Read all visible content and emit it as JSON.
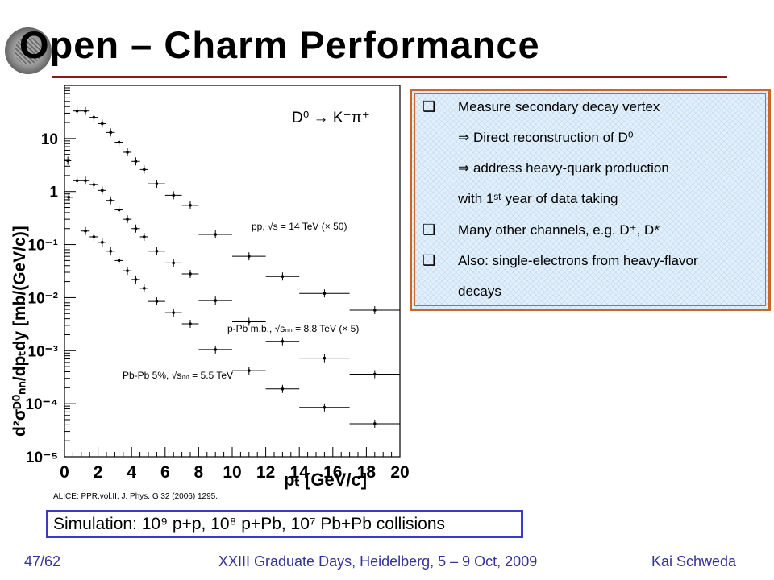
{
  "slide": {
    "title": "Open – Charm Performance",
    "reference": "ALICE:  PPR.vol.II, J. Phys. G 32 (2006)  1295.",
    "simulation": "Simulation:  10⁹ p+p, 10⁸ p+Pb, 10⁷ Pb+Pb collisions",
    "footer_left": "47/62",
    "footer_center": "XXIII Graduate Days, Heidelberg, 5 – 9 Oct, 2009",
    "footer_right": "Kai Schweda",
    "colors": {
      "rule": "#8b1a1a",
      "box_border": "#c9662a",
      "box_fill": "#e2f0fc",
      "sim_border": "#3a3ac8",
      "footer": "#333399"
    }
  },
  "bullets": [
    {
      "mark": "❑",
      "text": "Measure secondary decay vertex"
    },
    {
      "mark": "",
      "text": "⇒ Direct reconstruction of D⁰"
    },
    {
      "mark": "",
      "text": "⇒ address heavy-quark production"
    },
    {
      "mark": "",
      "text": "with 1ˢᵗ year of data taking"
    },
    {
      "mark": "❑",
      "text": "Many other channels, e.g. D⁺, D*"
    },
    {
      "mark": "❑",
      "text": "Also: single-electrons from heavy-flavor"
    },
    {
      "mark": "",
      "text": "decays"
    }
  ],
  "chart_data": {
    "type": "scatter",
    "decay_label": "D⁰ → K⁻π⁺",
    "xlabel": "pₜ [GeV/c]",
    "ylabel": "d²σᴰ⁰ₙₙ/dpₜdy [mb/(GeV/c)]",
    "xlim": [
      0,
      20
    ],
    "ylim_log10": [
      -5,
      2
    ],
    "y_scale": "log",
    "x_ticks": [
      "0",
      "2",
      "4",
      "6",
      "8",
      "10",
      "12",
      "14",
      "16",
      "18",
      "20"
    ],
    "y_ticks": [
      {
        "exp": 1,
        "label": "10"
      },
      {
        "exp": 0,
        "label": "1"
      },
      {
        "exp": -1,
        "label": "10⁻¹"
      },
      {
        "exp": -2,
        "label": "10⁻²"
      },
      {
        "exp": -3,
        "label": "10⁻³"
      },
      {
        "exp": -4,
        "label": "10⁻⁴"
      },
      {
        "exp": -5,
        "label": "10⁻⁵"
      }
    ],
    "series": [
      {
        "name": "pp, √s = 14 TeV (× 50)",
        "points": [
          [
            0.2,
            0.2,
            3.8
          ],
          [
            0.75,
            0.25,
            33
          ],
          [
            1.25,
            0.25,
            33
          ],
          [
            1.75,
            0.25,
            25
          ],
          [
            2.25,
            0.25,
            19
          ],
          [
            2.75,
            0.25,
            13
          ],
          [
            3.25,
            0.25,
            8.5
          ],
          [
            3.75,
            0.25,
            5.5
          ],
          [
            4.25,
            0.25,
            3.7
          ],
          [
            4.75,
            0.25,
            2.6
          ],
          [
            5.5,
            0.5,
            1.4
          ],
          [
            6.5,
            0.5,
            0.85
          ],
          [
            7.5,
            0.5,
            0.55
          ],
          [
            9,
            1,
            0.155
          ],
          [
            11,
            1,
            0.06
          ],
          [
            13,
            1,
            0.025
          ],
          [
            15.5,
            1.5,
            0.012
          ],
          [
            18.5,
            1.5,
            0.0058
          ]
        ]
      },
      {
        "name": "p-Pb m.b., √sₙₙ = 8.8 TeV (× 5)",
        "points": [
          [
            0.25,
            0.25,
            0.78
          ],
          [
            0.75,
            0.25,
            1.6
          ],
          [
            1.25,
            0.25,
            1.6
          ],
          [
            1.75,
            0.25,
            1.35
          ],
          [
            2.25,
            0.25,
            1.05
          ],
          [
            2.75,
            0.25,
            0.68
          ],
          [
            3.25,
            0.25,
            0.45
          ],
          [
            3.75,
            0.25,
            0.3
          ],
          [
            4.25,
            0.25,
            0.2
          ],
          [
            4.75,
            0.25,
            0.14
          ],
          [
            5.5,
            0.5,
            0.075
          ],
          [
            6.5,
            0.5,
            0.045
          ],
          [
            7.5,
            0.5,
            0.028
          ],
          [
            9,
            1,
            0.0088
          ],
          [
            11,
            1,
            0.0035
          ],
          [
            13,
            1,
            0.0015
          ],
          [
            15.5,
            1.5,
            0.00072
          ],
          [
            18.5,
            1.5,
            0.00036
          ]
        ]
      },
      {
        "name": "Pb-Pb 5%, √sₙₙ = 5.5 TeV",
        "points": [
          [
            1.25,
            0.25,
            0.18
          ],
          [
            1.75,
            0.25,
            0.14
          ],
          [
            2.25,
            0.25,
            0.11
          ],
          [
            2.75,
            0.25,
            0.075
          ],
          [
            3.25,
            0.25,
            0.05
          ],
          [
            3.75,
            0.25,
            0.032
          ],
          [
            4.25,
            0.25,
            0.022
          ],
          [
            4.75,
            0.25,
            0.015
          ],
          [
            5.5,
            0.5,
            0.0085
          ],
          [
            6.5,
            0.5,
            0.0052
          ],
          [
            7.5,
            0.5,
            0.0032
          ],
          [
            9,
            1,
            0.00105
          ],
          [
            11,
            1,
            0.00042
          ],
          [
            13,
            1,
            0.00019
          ],
          [
            15.5,
            1.5,
            8.5e-05
          ],
          [
            18.5,
            1.5,
            4.2e-05
          ]
        ]
      }
    ]
  }
}
